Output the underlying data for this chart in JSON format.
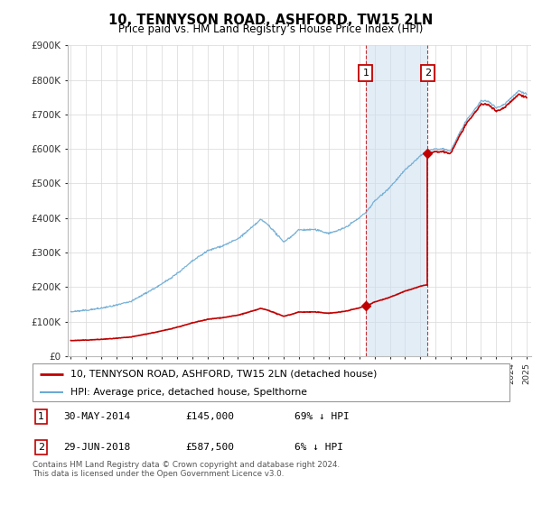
{
  "title": "10, TENNYSON ROAD, ASHFORD, TW15 2LN",
  "subtitle": "Price paid vs. HM Land Registry’s House Price Index (HPI)",
  "ylim": [
    0,
    900000
  ],
  "xlim_start": 1994.8,
  "xlim_end": 2025.3,
  "sale1_date": 2014.41,
  "sale1_price": 145000,
  "sale1_label": "1",
  "sale2_date": 2018.49,
  "sale2_price": 587500,
  "sale2_label": "2",
  "legend_line1": "10, TENNYSON ROAD, ASHFORD, TW15 2LN (detached house)",
  "legend_line2": "HPI: Average price, detached house, Spelthorne",
  "footnote": "Contains HM Land Registry data © Crown copyright and database right 2024.\nThis data is licensed under the Open Government Licence v3.0.",
  "hpi_color": "#6AAAD4",
  "property_color": "#C00000",
  "shade_color": "#CCDFF0",
  "yticks": [
    0,
    100000,
    200000,
    300000,
    400000,
    500000,
    600000,
    700000,
    800000,
    900000
  ],
  "ytick_labels": [
    "£0",
    "£100K",
    "£200K",
    "£300K",
    "£400K",
    "£500K",
    "£600K",
    "£700K",
    "£800K",
    "£900K"
  ]
}
